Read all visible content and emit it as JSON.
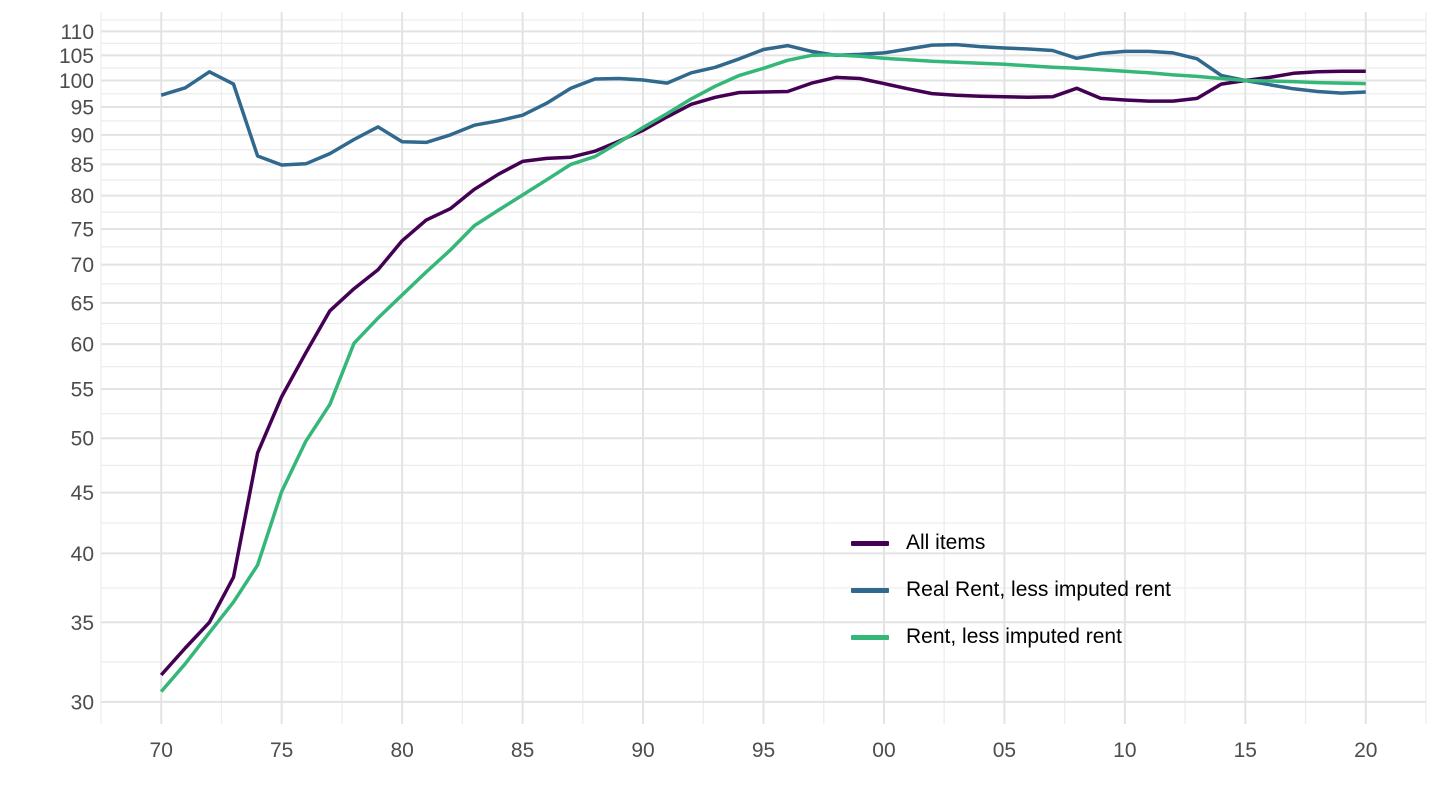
{
  "chart_data": {
    "type": "line",
    "title": "",
    "xlabel": "",
    "ylabel": "",
    "grid": true,
    "background_color": "#FFFFFF",
    "grid_major_color": "#E3E3E3",
    "grid_minor_color": "#EDEDED",
    "axis_text_color": "#4D4D4D",
    "legend_position": "inside-right",
    "x_axis": {
      "scale": "linear",
      "range_years": [
        1967.5,
        2022.5
      ],
      "tick_years": [
        1970,
        1975,
        1980,
        1985,
        1990,
        1995,
        2000,
        2005,
        2010,
        2015,
        2020
      ],
      "tick_labels": [
        "70",
        "75",
        "80",
        "85",
        "90",
        "95",
        "00",
        "05",
        "10",
        "15",
        "20"
      ],
      "minor_step_years": 2.5
    },
    "y_axis": {
      "scale": "log10",
      "range": [
        28.74,
        114.2
      ],
      "ticks": [
        30,
        35,
        40,
        45,
        50,
        55,
        60,
        65,
        70,
        75,
        80,
        85,
        90,
        95,
        100,
        105,
        110
      ],
      "tick_labels": [
        "30",
        "35",
        "40",
        "45",
        "50",
        "55",
        "60",
        "65",
        "70",
        "75",
        "80",
        "85",
        "90",
        "95",
        "100",
        "105",
        "110"
      ],
      "minor_breaks": "geometric-midpoints"
    },
    "x": [
      1970,
      1971,
      1972,
      1973,
      1974,
      1975,
      1976,
      1977,
      1978,
      1979,
      1980,
      1981,
      1982,
      1983,
      1984,
      1985,
      1986,
      1987,
      1988,
      1989,
      1990,
      1991,
      1992,
      1993,
      1994,
      1995,
      1996,
      1997,
      1998,
      1999,
      2000,
      2001,
      2002,
      2003,
      2004,
      2005,
      2006,
      2007,
      2008,
      2009,
      2010,
      2011,
      2012,
      2013,
      2014,
      2015,
      2016,
      2017,
      2018,
      2019,
      2020
    ],
    "series": [
      {
        "name": "All items",
        "color": "#440154",
        "values": [
          31.6,
          33.3,
          35.0,
          38.2,
          48.6,
          54.2,
          59.0,
          64.0,
          66.8,
          69.3,
          73.3,
          76.3,
          78.0,
          81.0,
          83.4,
          85.5,
          86.0,
          86.2,
          87.2,
          88.9,
          90.8,
          93.2,
          95.5,
          96.8,
          97.7,
          97.8,
          97.9,
          99.5,
          100.6,
          100.4,
          99.4,
          98.4,
          97.5,
          97.2,
          97.0,
          96.9,
          96.8,
          96.9,
          98.5,
          96.6,
          96.3,
          96.1,
          96.1,
          96.6,
          99.3,
          100.0,
          100.6,
          101.4,
          101.7,
          101.8,
          101.8
        ]
      },
      {
        "name": "Real Rent, less imputed rent",
        "color": "#31688E",
        "values": [
          97.2,
          98.6,
          101.7,
          99.3,
          86.4,
          84.9,
          85.1,
          86.8,
          89.2,
          91.4,
          88.8,
          88.7,
          90.0,
          91.7,
          92.5,
          93.5,
          95.7,
          98.5,
          100.3,
          100.4,
          100.1,
          99.5,
          101.5,
          102.6,
          104.3,
          106.2,
          107.0,
          105.8,
          105.0,
          105.2,
          105.5,
          106.3,
          107.1,
          107.2,
          106.8,
          106.5,
          106.3,
          106.0,
          104.4,
          105.4,
          105.8,
          105.8,
          105.5,
          104.3,
          101.0,
          100.0,
          99.2,
          98.4,
          97.9,
          97.6,
          97.8
        ]
      },
      {
        "name": "Rent, less imputed rent",
        "color": "#35B779",
        "values": [
          30.6,
          32.3,
          34.3,
          36.4,
          39.1,
          45.1,
          49.7,
          53.4,
          60.1,
          63.1,
          66.0,
          69.0,
          72.0,
          75.5,
          77.8,
          80.1,
          82.5,
          85.0,
          86.3,
          88.7,
          91.3,
          93.8,
          96.5,
          98.9,
          101.0,
          102.4,
          104.0,
          105.0,
          105.1,
          104.8,
          104.4,
          104.1,
          103.8,
          103.6,
          103.4,
          103.2,
          102.9,
          102.6,
          102.4,
          102.1,
          101.8,
          101.5,
          101.1,
          100.8,
          100.4,
          100.0,
          99.9,
          99.8,
          99.6,
          99.5,
          99.4
        ]
      }
    ]
  }
}
